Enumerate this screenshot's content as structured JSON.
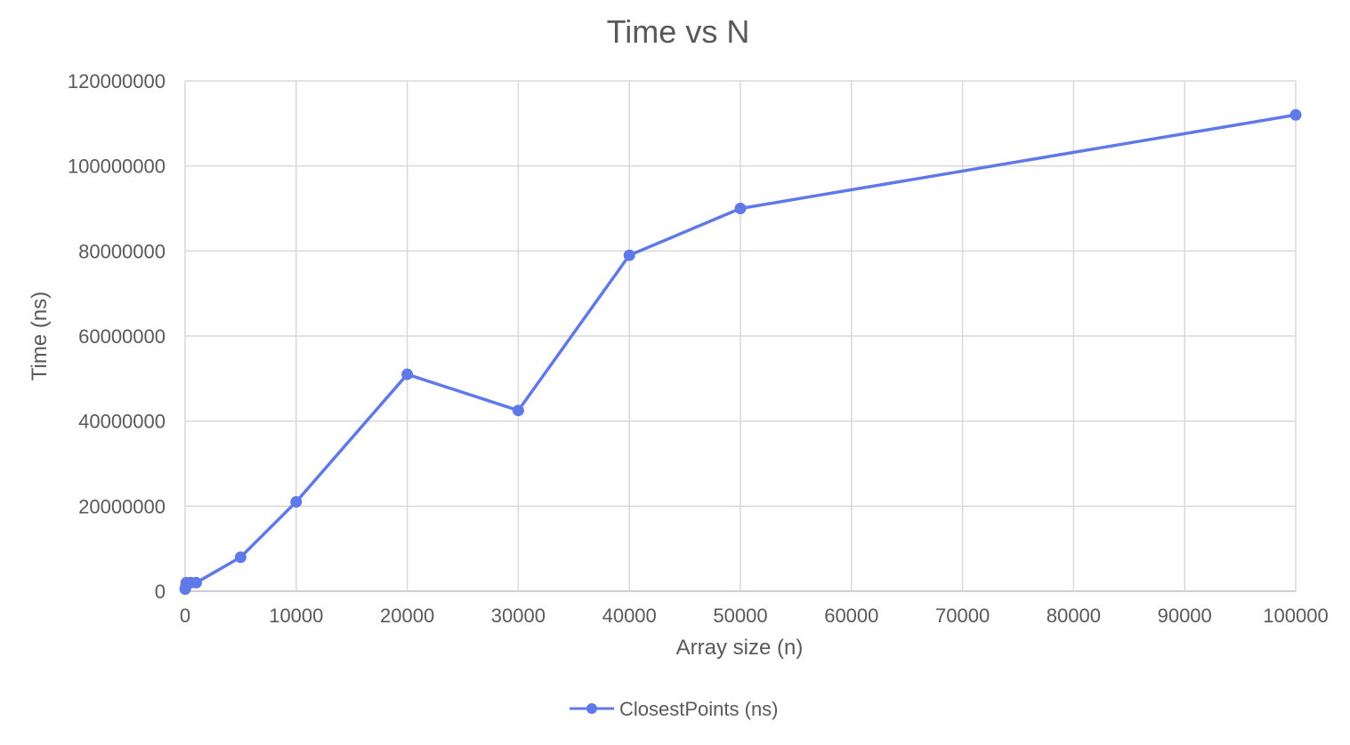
{
  "chart_data": {
    "type": "line",
    "title": "Time vs N",
    "xlabel": "Array size (n)",
    "ylabel": "Time (ns)",
    "xlim": [
      0,
      100000
    ],
    "ylim": [
      0,
      120000000
    ],
    "x_ticks": [
      "0",
      "10000",
      "20000",
      "30000",
      "40000",
      "50000",
      "60000",
      "70000",
      "80000",
      "90000",
      "100000"
    ],
    "y_ticks": [
      "0",
      "20000000",
      "40000000",
      "60000000",
      "80000000",
      "100000000",
      "120000000"
    ],
    "grid": true,
    "legend_position": "bottom",
    "series": [
      {
        "name": "ClosestPoints (ns)",
        "color": "#6079e8",
        "x": [
          10,
          50,
          100,
          500,
          1000,
          5000,
          10000,
          20000,
          30000,
          40000,
          50000,
          100000
        ],
        "y": [
          500000,
          1000000,
          2000000,
          2000000,
          2000000,
          8000000,
          21000000,
          51000000,
          42500000,
          79000000,
          90000000,
          112000000
        ]
      }
    ]
  }
}
